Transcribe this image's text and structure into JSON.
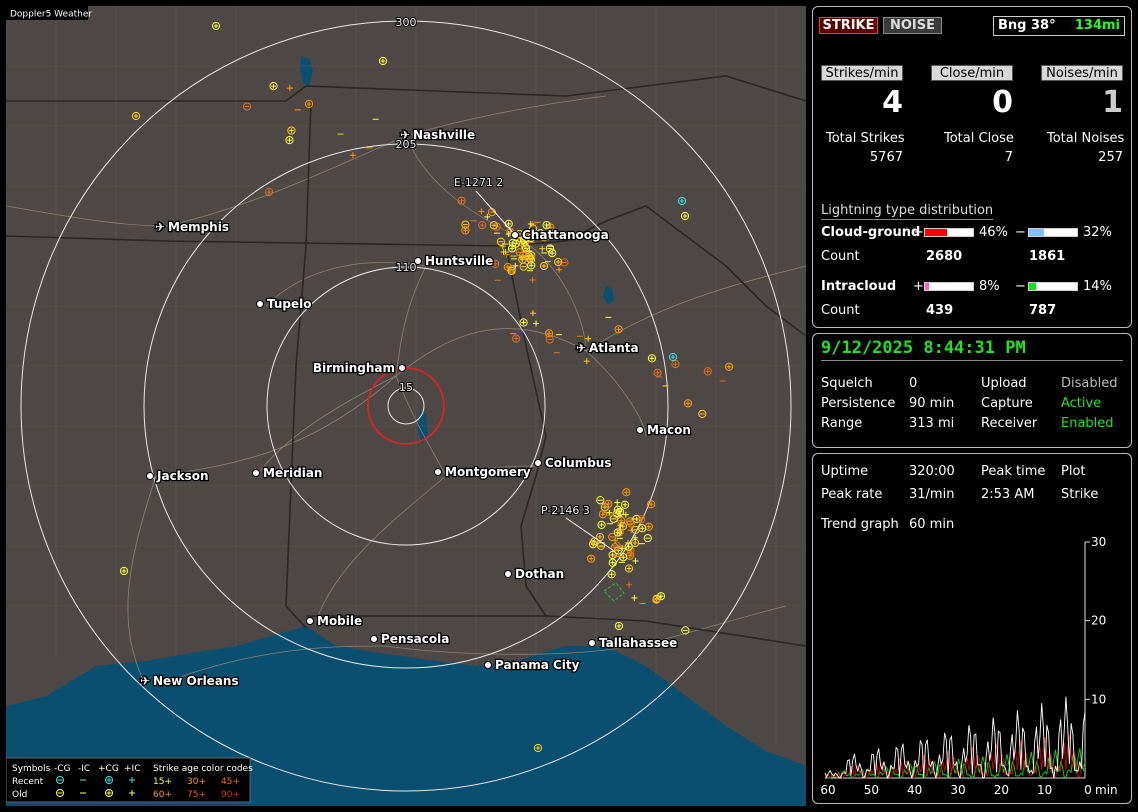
{
  "map": {
    "title": "Doppler5 Weather",
    "range_labels": [
      "300",
      "205",
      "110",
      "15"
    ],
    "cities": [
      {
        "name": "Nashville",
        "icon": "airport-icon"
      },
      {
        "name": "Memphis",
        "icon": "airport-icon"
      },
      {
        "name": "Chattanooga",
        "icon": "city-dot-icon"
      },
      {
        "name": "Huntsville",
        "icon": "city-dot-icon"
      },
      {
        "name": "Tupelo",
        "icon": "city-dot-icon"
      },
      {
        "name": "Atlanta",
        "icon": "airport-icon"
      },
      {
        "name": "Birmingham",
        "icon": "city-dot-icon"
      },
      {
        "name": "Macon",
        "icon": "city-dot-icon"
      },
      {
        "name": "Jackson",
        "icon": "city-dot-icon"
      },
      {
        "name": "Meridian",
        "icon": "city-dot-icon"
      },
      {
        "name": "Montgomery",
        "icon": "city-dot-icon"
      },
      {
        "name": "Columbus",
        "icon": "city-dot-icon"
      },
      {
        "name": "Dothan",
        "icon": "city-dot-icon"
      },
      {
        "name": "Mobile",
        "icon": "city-dot-icon"
      },
      {
        "name": "Pensacola",
        "icon": "city-dot-icon"
      },
      {
        "name": "Tallahassee",
        "icon": "city-dot-icon"
      },
      {
        "name": "Panama City",
        "icon": "city-dot-icon"
      },
      {
        "name": "New Orleans",
        "icon": "airport-icon"
      }
    ],
    "storm_labels": [
      "E-1271  2",
      "P-2146  3"
    ],
    "legend": {
      "symbols_label": "Symbols",
      "col_headers": [
        "-CG",
        "-IC",
        "+CG",
        "+IC"
      ],
      "age_header": "Strike age color codes",
      "rows": [
        {
          "label": "Recent",
          "ages": [
            "15+",
            "30+",
            "45+"
          ],
          "colors": [
            "#ffff40",
            "#ff9900",
            "#ff6a00"
          ],
          "symbol_color": "#40e0e0"
        },
        {
          "label": "Old",
          "ages": [
            "60+",
            "75+",
            "90+"
          ],
          "colors": [
            "#ff9900",
            "#e06020",
            "#d03010"
          ],
          "symbol_color": "#ffff40"
        }
      ]
    }
  },
  "top": {
    "strike_btn": "STRIKE",
    "noise_btn": "NOISE",
    "bearing": "Bng 38°",
    "distance": "134mi"
  },
  "rates": [
    {
      "label": "Strikes/min",
      "value": "4",
      "color": "#ffffff"
    },
    {
      "label": "Close/min",
      "value": "0",
      "color": "#ffffff"
    },
    {
      "label": "Noises/min",
      "value": "1",
      "color": "#cccccc"
    }
  ],
  "totals": [
    {
      "label": "Total Strikes",
      "value": "5767"
    },
    {
      "label": "Total Close",
      "value": "7"
    },
    {
      "label": "Total Noises",
      "value": "257"
    }
  ],
  "distribution": {
    "title": "Lightning type distribution",
    "cloud_ground": {
      "label": "Cloud-ground",
      "count_label": "Count",
      "pos_sign": "+",
      "pos_pct": "46%",
      "pos_fill": 0.46,
      "pos_color": "#ff0000",
      "pos_count": "2680",
      "neg_sign": "−",
      "neg_pct": "32%",
      "neg_fill": 0.32,
      "neg_color": "#80c0ff",
      "neg_count": "1861"
    },
    "intracloud": {
      "label": "Intracloud",
      "count_label": "Count",
      "pos_sign": "+",
      "pos_pct": "8%",
      "pos_fill": 0.08,
      "pos_color": "#ff60c0",
      "pos_count": "439",
      "neg_sign": "−",
      "neg_pct": "14%",
      "neg_fill": 0.14,
      "neg_color": "#00ee00",
      "neg_count": "787"
    }
  },
  "status": {
    "datetime": "9/12/2025 8:44:31 PM",
    "rows": [
      {
        "k1": "Squelch",
        "v1": "0",
        "k2": "Upload",
        "v2": "Disabled",
        "c2": "#bbbbbb"
      },
      {
        "k1": "Persistence",
        "v1": "90 min",
        "k2": "Capture",
        "v2": "Active",
        "c2": "#20e020"
      },
      {
        "k1": "Range",
        "v1": "313 mi",
        "k2": "Receiver",
        "v2": "Enabled",
        "c2": "#20e020"
      }
    ]
  },
  "trend": {
    "uptime_label": "Uptime",
    "uptime": "320:00",
    "peak_time_label": "Peak time",
    "peak_time": "2:53 AM",
    "plot_label": "Plot",
    "plot": "Strike",
    "peak_rate_label": "Peak rate",
    "peak_rate": "31/min",
    "trend_label": "Trend graph",
    "trend_value": "60 min",
    "y_ticks": [
      "30",
      "20",
      "10"
    ],
    "x_ticks": [
      "60",
      "50",
      "40",
      "30",
      "20",
      "10",
      "0"
    ],
    "x_unit": "min"
  }
}
